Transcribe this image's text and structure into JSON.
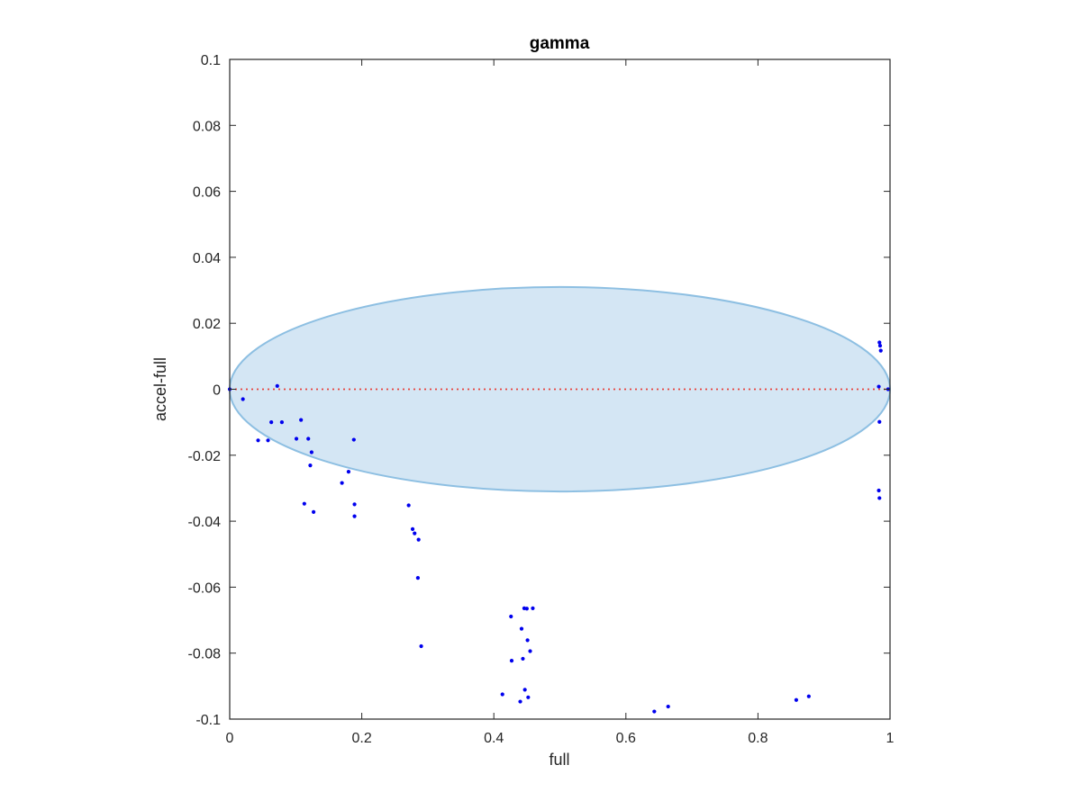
{
  "chart_data": {
    "type": "scatter",
    "title": "gamma",
    "xlabel": "full",
    "ylabel": "accel-full",
    "xlim": [
      0,
      1
    ],
    "ylim": [
      -0.1,
      0.1
    ],
    "xticks": [
      0,
      0.2,
      0.4,
      0.6,
      0.8,
      1
    ],
    "xtick_labels": [
      "0",
      "0.2",
      "0.4",
      "0.6",
      "0.8",
      "1"
    ],
    "yticks": [
      0.1,
      0.08,
      0.06,
      0.04,
      0.02,
      0,
      -0.02,
      -0.04,
      -0.06,
      -0.08,
      -0.1
    ],
    "ytick_labels": [
      "0.1",
      "0.08",
      "0.06",
      "0.04",
      "0.02",
      "0",
      "-0.02",
      "-0.04",
      "-0.06",
      "-0.08",
      "-0.1"
    ],
    "grid": false,
    "reference_line": {
      "y": 0,
      "color": "#e8413b",
      "style": "dotted"
    },
    "ellipse": {
      "center": [
        0.5,
        0
      ],
      "x_radius": 0.5,
      "y_radius": 0.031,
      "fill": "#d4e6f4",
      "stroke": "#8dbfe2"
    },
    "series": [
      {
        "color": "#0000ee",
        "points": [
          {
            "x": 0.0,
            "y": 0.0
          },
          {
            "x": 0.02,
            "y": -0.003
          },
          {
            "x": 0.043,
            "y": -0.0155
          },
          {
            "x": 0.058,
            "y": -0.0155
          },
          {
            "x": 0.063,
            "y": -0.01
          },
          {
            "x": 0.072,
            "y": 0.001
          },
          {
            "x": 0.079,
            "y": -0.01
          },
          {
            "x": 0.101,
            "y": -0.015
          },
          {
            "x": 0.108,
            "y": -0.0093
          },
          {
            "x": 0.113,
            "y": -0.0347
          },
          {
            "x": 0.119,
            "y": -0.015
          },
          {
            "x": 0.122,
            "y": -0.0231
          },
          {
            "x": 0.124,
            "y": -0.0191
          },
          {
            "x": 0.127,
            "y": -0.0372
          },
          {
            "x": 0.17,
            "y": -0.0284
          },
          {
            "x": 0.18,
            "y": -0.025
          },
          {
            "x": 0.188,
            "y": -0.0153
          },
          {
            "x": 0.189,
            "y": -0.0349
          },
          {
            "x": 0.189,
            "y": -0.0385
          },
          {
            "x": 0.271,
            "y": -0.0352
          },
          {
            "x": 0.277,
            "y": -0.0424
          },
          {
            "x": 0.28,
            "y": -0.0437
          },
          {
            "x": 0.286,
            "y": -0.0456
          },
          {
            "x": 0.285,
            "y": -0.0572
          },
          {
            "x": 0.29,
            "y": -0.0779
          },
          {
            "x": 0.413,
            "y": -0.0925
          },
          {
            "x": 0.426,
            "y": -0.0689
          },
          {
            "x": 0.427,
            "y": -0.0823
          },
          {
            "x": 0.44,
            "y": -0.0947
          },
          {
            "x": 0.442,
            "y": -0.0726
          },
          {
            "x": 0.444,
            "y": -0.0817
          },
          {
            "x": 0.446,
            "y": -0.0664
          },
          {
            "x": 0.447,
            "y": -0.0911
          },
          {
            "x": 0.45,
            "y": -0.0665
          },
          {
            "x": 0.451,
            "y": -0.0761
          },
          {
            "x": 0.452,
            "y": -0.0934
          },
          {
            "x": 0.455,
            "y": -0.0794
          },
          {
            "x": 0.459,
            "y": -0.0664
          },
          {
            "x": 0.643,
            "y": -0.0977
          },
          {
            "x": 0.664,
            "y": -0.0962
          },
          {
            "x": 0.858,
            "y": -0.0942
          },
          {
            "x": 0.877,
            "y": -0.0931
          },
          {
            "x": 0.984,
            "y": 0.0142
          },
          {
            "x": 0.985,
            "y": 0.0132
          },
          {
            "x": 0.986,
            "y": 0.0117
          },
          {
            "x": 0.983,
            "y": 0.0008
          },
          {
            "x": 0.984,
            "y": -0.0099
          },
          {
            "x": 0.983,
            "y": -0.0307
          },
          {
            "x": 0.984,
            "y": -0.033
          },
          {
            "x": 0.997,
            "y": 0.0
          }
        ]
      }
    ]
  }
}
